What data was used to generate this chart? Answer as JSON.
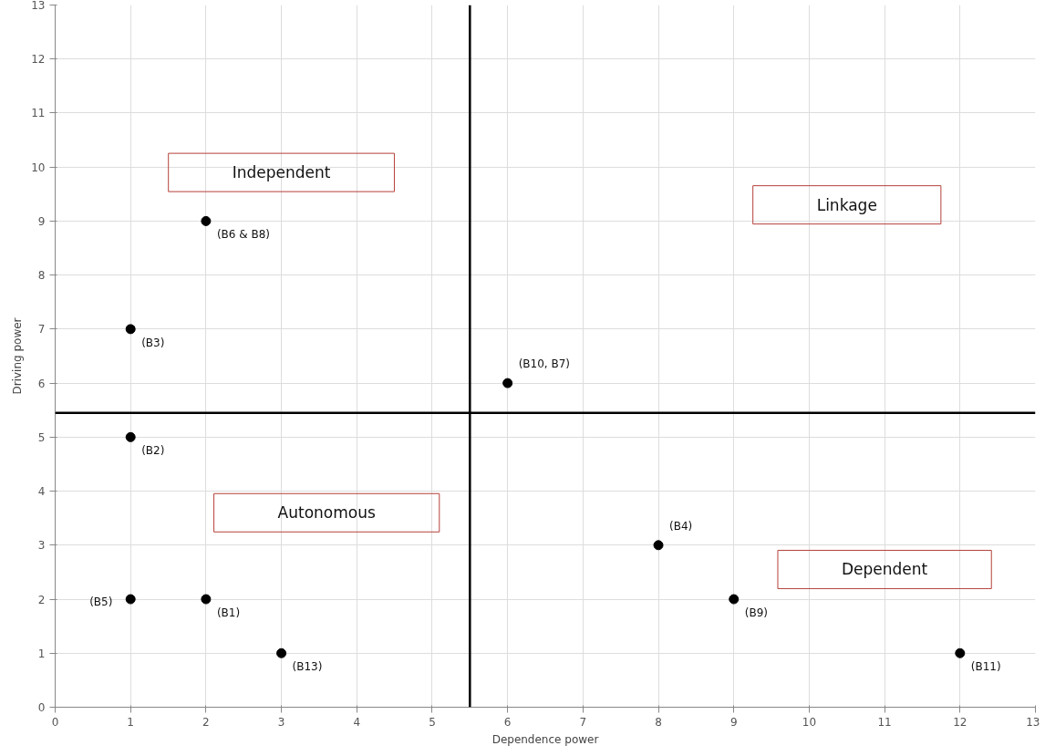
{
  "chart_data": {
    "type": "scatter",
    "xlabel": "Dependence power",
    "ylabel": "Driving power",
    "x": [
      2,
      1,
      6,
      1,
      8,
      1,
      2,
      9,
      3,
      12
    ],
    "values": [
      9,
      7,
      6,
      5,
      3,
      2,
      2,
      2,
      1,
      1
    ],
    "value_labels": [
      "(B6 & B8)",
      "(B3)",
      "(B10, B7)",
      "(B2)",
      "(B4)",
      "(B5)",
      "(B1)",
      "(B9)",
      "(B13)",
      "(B11)"
    ],
    "color": "#000000",
    "marker": "circle",
    "xlim": [
      0,
      13
    ],
    "ylim": [
      0,
      13
    ],
    "xticks": [
      0,
      1,
      2,
      3,
      4,
      5,
      6,
      7,
      8,
      9,
      10,
      11,
      12,
      13
    ],
    "yticks": [
      0,
      1,
      2,
      3,
      4,
      5,
      6,
      7,
      8,
      9,
      10,
      11,
      12,
      13
    ],
    "grid": true,
    "ref_lines": [
      {
        "axis": "x",
        "value": 5.5,
        "color": "#000000"
      },
      {
        "axis": "y",
        "value": 5.45,
        "color": "#000000"
      }
    ],
    "annotations": [
      "Independent",
      "Linkage",
      "Autonomous",
      "Dependent"
    ]
  }
}
